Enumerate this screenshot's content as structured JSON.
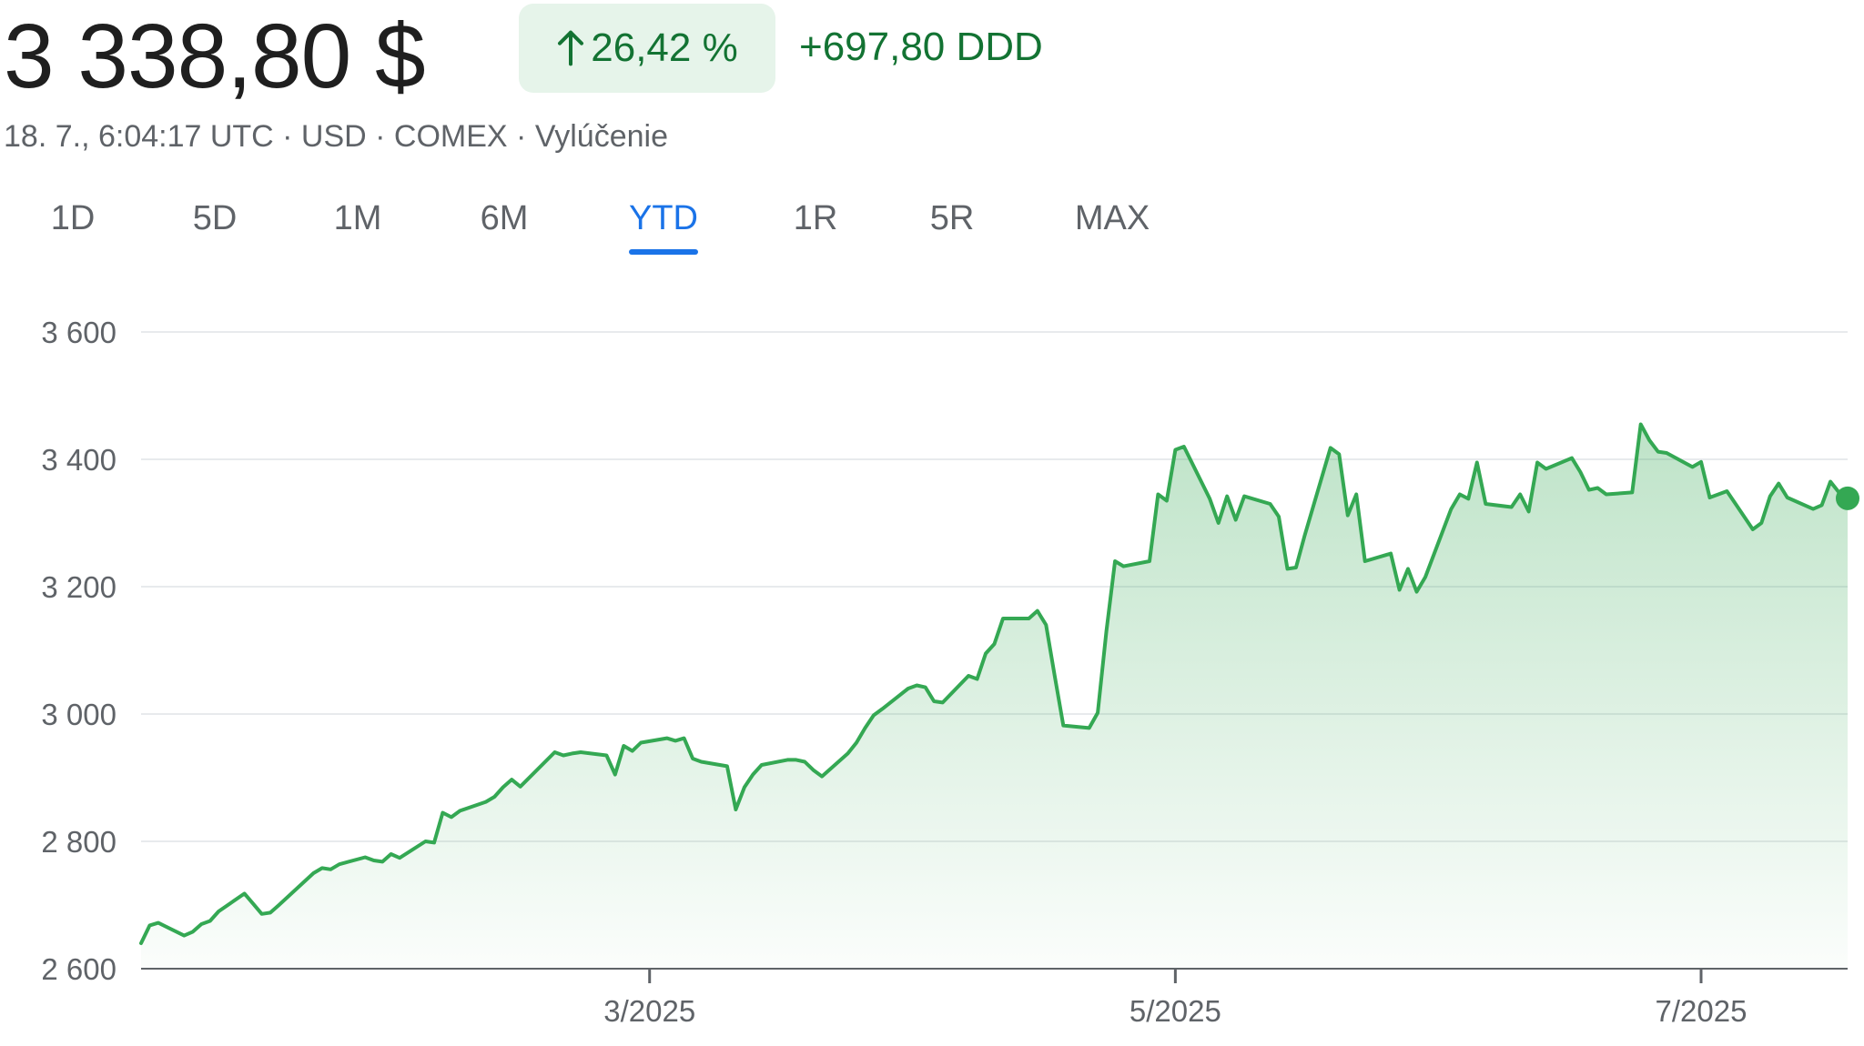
{
  "header": {
    "price": "3 338,80 $",
    "change_percent": "26,42 %",
    "change_absolute": "+697,80 DDD",
    "meta": "18. 7., 6:04:17 UTC · USD · COMEX · Vylúčenie"
  },
  "tabs": [
    {
      "label": "1D",
      "active": false
    },
    {
      "label": "5D",
      "active": false
    },
    {
      "label": "1M",
      "active": false
    },
    {
      "label": "6M",
      "active": false
    },
    {
      "label": "YTD",
      "active": true
    },
    {
      "label": "1R",
      "active": false
    },
    {
      "label": "5R",
      "active": false
    },
    {
      "label": "MAX",
      "active": false
    }
  ],
  "colors": {
    "accent": "#1a73e8",
    "positive": "#137333",
    "line": "#34a853",
    "chip_bg": "#e6f4ea"
  },
  "icons": {
    "change": "arrow-up-icon"
  },
  "chart_data": {
    "type": "area",
    "x_start": "2025-01-01",
    "x_end": "2025-07-18",
    "ylim": [
      2600,
      3600
    ],
    "y_ticks": [
      {
        "value": 3600,
        "label": "3 600"
      },
      {
        "value": 3400,
        "label": "3 400"
      },
      {
        "value": 3200,
        "label": "3 200"
      },
      {
        "value": 3000,
        "label": "3 000"
      },
      {
        "value": 2800,
        "label": "2 800"
      },
      {
        "value": 2600,
        "label": "2 600"
      }
    ],
    "x_ticks": [
      {
        "date": "2025-03-01",
        "label": "3/2025"
      },
      {
        "date": "2025-05-01",
        "label": "5/2025"
      },
      {
        "date": "2025-07-01",
        "label": "7/2025"
      }
    ],
    "grid": true,
    "series": [
      {
        "points": [
          [
            "2025-01-01",
            2640
          ],
          [
            "2025-01-02",
            2668
          ],
          [
            "2025-01-03",
            2672
          ],
          [
            "2025-01-06",
            2652
          ],
          [
            "2025-01-07",
            2658
          ],
          [
            "2025-01-08",
            2670
          ],
          [
            "2025-01-09",
            2675
          ],
          [
            "2025-01-10",
            2690
          ],
          [
            "2025-01-13",
            2718
          ],
          [
            "2025-01-14",
            2702
          ],
          [
            "2025-01-15",
            2686
          ],
          [
            "2025-01-16",
            2688
          ],
          [
            "2025-01-17",
            2700
          ],
          [
            "2025-01-21",
            2750
          ],
          [
            "2025-01-22",
            2758
          ],
          [
            "2025-01-23",
            2756
          ],
          [
            "2025-01-24",
            2764
          ],
          [
            "2025-01-27",
            2775
          ],
          [
            "2025-01-28",
            2770
          ],
          [
            "2025-01-29",
            2768
          ],
          [
            "2025-01-30",
            2780
          ],
          [
            "2025-01-31",
            2774
          ],
          [
            "2025-02-03",
            2800
          ],
          [
            "2025-02-04",
            2798
          ],
          [
            "2025-02-05",
            2845
          ],
          [
            "2025-02-06",
            2838
          ],
          [
            "2025-02-07",
            2848
          ],
          [
            "2025-02-10",
            2862
          ],
          [
            "2025-02-11",
            2870
          ],
          [
            "2025-02-12",
            2885
          ],
          [
            "2025-02-13",
            2897
          ],
          [
            "2025-02-14",
            2886
          ],
          [
            "2025-02-18",
            2940
          ],
          [
            "2025-02-19",
            2935
          ],
          [
            "2025-02-20",
            2938
          ],
          [
            "2025-02-21",
            2940
          ],
          [
            "2025-02-24",
            2935
          ],
          [
            "2025-02-25",
            2905
          ],
          [
            "2025-02-26",
            2950
          ],
          [
            "2025-02-27",
            2942
          ],
          [
            "2025-02-28",
            2955
          ],
          [
            "2025-03-03",
            2962
          ],
          [
            "2025-03-04",
            2958
          ],
          [
            "2025-03-05",
            2962
          ],
          [
            "2025-03-06",
            2930
          ],
          [
            "2025-03-07",
            2925
          ],
          [
            "2025-03-10",
            2918
          ],
          [
            "2025-03-11",
            2850
          ],
          [
            "2025-03-12",
            2885
          ],
          [
            "2025-03-13",
            2905
          ],
          [
            "2025-03-14",
            2920
          ],
          [
            "2025-03-17",
            2928
          ],
          [
            "2025-03-18",
            2928
          ],
          [
            "2025-03-19",
            2925
          ],
          [
            "2025-03-20",
            2912
          ],
          [
            "2025-03-21",
            2902
          ],
          [
            "2025-03-24",
            2938
          ],
          [
            "2025-03-25",
            2955
          ],
          [
            "2025-03-26",
            2978
          ],
          [
            "2025-03-27",
            2998
          ],
          [
            "2025-03-28",
            3008
          ],
          [
            "2025-03-31",
            3040
          ],
          [
            "2025-04-01",
            3045
          ],
          [
            "2025-04-02",
            3042
          ],
          [
            "2025-04-03",
            3020
          ],
          [
            "2025-04-04",
            3018
          ],
          [
            "2025-04-07",
            3060
          ],
          [
            "2025-04-08",
            3055
          ],
          [
            "2025-04-09",
            3095
          ],
          [
            "2025-04-10",
            3110
          ],
          [
            "2025-04-11",
            3150
          ],
          [
            "2025-04-14",
            3150
          ],
          [
            "2025-04-15",
            3162
          ],
          [
            "2025-04-16",
            3140
          ],
          [
            "2025-04-17",
            3060
          ],
          [
            "2025-04-18",
            2982
          ],
          [
            "2025-04-21",
            2978
          ],
          [
            "2025-04-22",
            3002
          ],
          [
            "2025-04-23",
            3130
          ],
          [
            "2025-04-24",
            3240
          ],
          [
            "2025-04-25",
            3232
          ],
          [
            "2025-04-28",
            3240
          ],
          [
            "2025-04-29",
            3345
          ],
          [
            "2025-04-30",
            3335
          ],
          [
            "2025-05-01",
            3415
          ],
          [
            "2025-05-02",
            3420
          ],
          [
            "2025-05-05",
            3338
          ],
          [
            "2025-05-06",
            3300
          ],
          [
            "2025-05-07",
            3342
          ],
          [
            "2025-05-08",
            3305
          ],
          [
            "2025-05-09",
            3342
          ],
          [
            "2025-05-12",
            3330
          ],
          [
            "2025-05-13",
            3310
          ],
          [
            "2025-05-14",
            3228
          ],
          [
            "2025-05-15",
            3230
          ],
          [
            "2025-05-16",
            3280
          ],
          [
            "2025-05-19",
            3418
          ],
          [
            "2025-05-20",
            3408
          ],
          [
            "2025-05-21",
            3312
          ],
          [
            "2025-05-22",
            3345
          ],
          [
            "2025-05-23",
            3240
          ],
          [
            "2025-05-26",
            3252
          ],
          [
            "2025-05-27",
            3195
          ],
          [
            "2025-05-28",
            3228
          ],
          [
            "2025-05-29",
            3192
          ],
          [
            "2025-05-30",
            3215
          ],
          [
            "2025-06-02",
            3322
          ],
          [
            "2025-06-03",
            3345
          ],
          [
            "2025-06-04",
            3338
          ],
          [
            "2025-06-05",
            3395
          ],
          [
            "2025-06-06",
            3330
          ],
          [
            "2025-06-09",
            3325
          ],
          [
            "2025-06-10",
            3345
          ],
          [
            "2025-06-11",
            3318
          ],
          [
            "2025-06-12",
            3395
          ],
          [
            "2025-06-13",
            3385
          ],
          [
            "2025-06-16",
            3402
          ],
          [
            "2025-06-17",
            3380
          ],
          [
            "2025-06-18",
            3352
          ],
          [
            "2025-06-19",
            3355
          ],
          [
            "2025-06-20",
            3345
          ],
          [
            "2025-06-23",
            3348
          ],
          [
            "2025-06-24",
            3455
          ],
          [
            "2025-06-25",
            3430
          ],
          [
            "2025-06-26",
            3412
          ],
          [
            "2025-06-27",
            3410
          ],
          [
            "2025-06-30",
            3388
          ],
          [
            "2025-07-01",
            3396
          ],
          [
            "2025-07-02",
            3340
          ],
          [
            "2025-07-03",
            3345
          ],
          [
            "2025-07-04",
            3350
          ],
          [
            "2025-07-07",
            3290
          ],
          [
            "2025-07-08",
            3300
          ],
          [
            "2025-07-09",
            3342
          ],
          [
            "2025-07-10",
            3362
          ],
          [
            "2025-07-11",
            3340
          ],
          [
            "2025-07-14",
            3322
          ],
          [
            "2025-07-15",
            3328
          ],
          [
            "2025-07-16",
            3365
          ],
          [
            "2025-07-17",
            3348
          ],
          [
            "2025-07-18",
            3338.8
          ]
        ]
      }
    ]
  }
}
